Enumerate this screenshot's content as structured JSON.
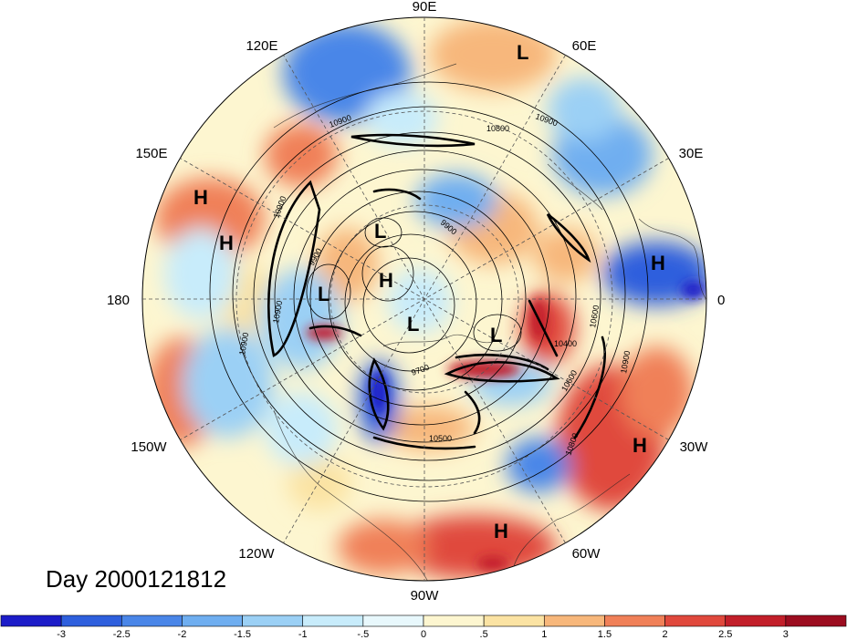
{
  "title": "Day 2000121812",
  "longitude_labels": [
    "90E",
    "60E",
    "30E",
    "0",
    "30W",
    "60W",
    "90W",
    "120W",
    "150W",
    "180",
    "150E",
    "120E"
  ],
  "pressure_systems": [
    {
      "label": "L",
      "name": "low-north-60e"
    },
    {
      "label": "H",
      "name": "high-150e-a"
    },
    {
      "label": "H",
      "name": "high-150e-b"
    },
    {
      "label": "L",
      "name": "low-arctic-a"
    },
    {
      "label": "H",
      "name": "high-arctic"
    },
    {
      "label": "L",
      "name": "low-180"
    },
    {
      "label": "L",
      "name": "low-pole"
    },
    {
      "label": "L",
      "name": "low-greenland"
    },
    {
      "label": "H",
      "name": "high-europe"
    },
    {
      "label": "H",
      "name": "high-atlantic"
    },
    {
      "label": "H",
      "name": "high-caribbean"
    }
  ],
  "contour_labels": [
    "10900",
    "10800",
    "10900",
    "10900",
    "10900",
    "9900",
    "9900",
    "10600",
    "10400",
    "10600",
    "10900",
    "10800",
    "10900",
    "9700",
    "10500"
  ],
  "colorbar": {
    "ticks": [
      "-3",
      "-2.5",
      "-2",
      "-1.5",
      "-1",
      "-.5",
      "0",
      ".5",
      "1",
      "1.5",
      "2",
      "2.5",
      "3"
    ],
    "colors": [
      "#1c1cc8",
      "#2e5fdd",
      "#4a86e8",
      "#6faef0",
      "#9bd0f5",
      "#c8ecfb",
      "#e8f8fc",
      "#fdf6d0",
      "#fbe3a3",
      "#f7b77b",
      "#f08058",
      "#e0483c",
      "#c21f2a",
      "#9c0d20"
    ]
  }
}
